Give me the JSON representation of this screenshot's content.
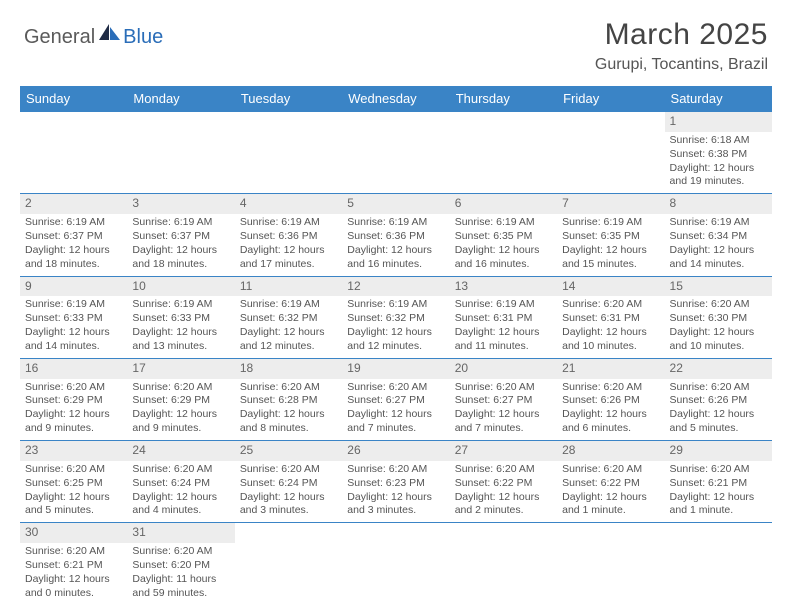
{
  "logo": {
    "general": "General",
    "blue": "Blue"
  },
  "title": "March 2025",
  "location": "Gurupi, Tocantins, Brazil",
  "colors": {
    "header_bg": "#3a84c6",
    "header_text": "#ffffff",
    "border": "#3a84c6",
    "daynum_bg": "#ededed",
    "text": "#555555",
    "logo_gray": "#5a5a5a",
    "logo_blue": "#2a6db8"
  },
  "weekdays": [
    "Sunday",
    "Monday",
    "Tuesday",
    "Wednesday",
    "Thursday",
    "Friday",
    "Saturday"
  ],
  "weeks": [
    [
      null,
      null,
      null,
      null,
      null,
      null,
      {
        "n": "1",
        "sr": "Sunrise: 6:18 AM",
        "ss": "Sunset: 6:38 PM",
        "d1": "Daylight: 12 hours",
        "d2": "and 19 minutes."
      }
    ],
    [
      {
        "n": "2",
        "sr": "Sunrise: 6:19 AM",
        "ss": "Sunset: 6:37 PM",
        "d1": "Daylight: 12 hours",
        "d2": "and 18 minutes."
      },
      {
        "n": "3",
        "sr": "Sunrise: 6:19 AM",
        "ss": "Sunset: 6:37 PM",
        "d1": "Daylight: 12 hours",
        "d2": "and 18 minutes."
      },
      {
        "n": "4",
        "sr": "Sunrise: 6:19 AM",
        "ss": "Sunset: 6:36 PM",
        "d1": "Daylight: 12 hours",
        "d2": "and 17 minutes."
      },
      {
        "n": "5",
        "sr": "Sunrise: 6:19 AM",
        "ss": "Sunset: 6:36 PM",
        "d1": "Daylight: 12 hours",
        "d2": "and 16 minutes."
      },
      {
        "n": "6",
        "sr": "Sunrise: 6:19 AM",
        "ss": "Sunset: 6:35 PM",
        "d1": "Daylight: 12 hours",
        "d2": "and 16 minutes."
      },
      {
        "n": "7",
        "sr": "Sunrise: 6:19 AM",
        "ss": "Sunset: 6:35 PM",
        "d1": "Daylight: 12 hours",
        "d2": "and 15 minutes."
      },
      {
        "n": "8",
        "sr": "Sunrise: 6:19 AM",
        "ss": "Sunset: 6:34 PM",
        "d1": "Daylight: 12 hours",
        "d2": "and 14 minutes."
      }
    ],
    [
      {
        "n": "9",
        "sr": "Sunrise: 6:19 AM",
        "ss": "Sunset: 6:33 PM",
        "d1": "Daylight: 12 hours",
        "d2": "and 14 minutes."
      },
      {
        "n": "10",
        "sr": "Sunrise: 6:19 AM",
        "ss": "Sunset: 6:33 PM",
        "d1": "Daylight: 12 hours",
        "d2": "and 13 minutes."
      },
      {
        "n": "11",
        "sr": "Sunrise: 6:19 AM",
        "ss": "Sunset: 6:32 PM",
        "d1": "Daylight: 12 hours",
        "d2": "and 12 minutes."
      },
      {
        "n": "12",
        "sr": "Sunrise: 6:19 AM",
        "ss": "Sunset: 6:32 PM",
        "d1": "Daylight: 12 hours",
        "d2": "and 12 minutes."
      },
      {
        "n": "13",
        "sr": "Sunrise: 6:19 AM",
        "ss": "Sunset: 6:31 PM",
        "d1": "Daylight: 12 hours",
        "d2": "and 11 minutes."
      },
      {
        "n": "14",
        "sr": "Sunrise: 6:20 AM",
        "ss": "Sunset: 6:31 PM",
        "d1": "Daylight: 12 hours",
        "d2": "and 10 minutes."
      },
      {
        "n": "15",
        "sr": "Sunrise: 6:20 AM",
        "ss": "Sunset: 6:30 PM",
        "d1": "Daylight: 12 hours",
        "d2": "and 10 minutes."
      }
    ],
    [
      {
        "n": "16",
        "sr": "Sunrise: 6:20 AM",
        "ss": "Sunset: 6:29 PM",
        "d1": "Daylight: 12 hours",
        "d2": "and 9 minutes."
      },
      {
        "n": "17",
        "sr": "Sunrise: 6:20 AM",
        "ss": "Sunset: 6:29 PM",
        "d1": "Daylight: 12 hours",
        "d2": "and 9 minutes."
      },
      {
        "n": "18",
        "sr": "Sunrise: 6:20 AM",
        "ss": "Sunset: 6:28 PM",
        "d1": "Daylight: 12 hours",
        "d2": "and 8 minutes."
      },
      {
        "n": "19",
        "sr": "Sunrise: 6:20 AM",
        "ss": "Sunset: 6:27 PM",
        "d1": "Daylight: 12 hours",
        "d2": "and 7 minutes."
      },
      {
        "n": "20",
        "sr": "Sunrise: 6:20 AM",
        "ss": "Sunset: 6:27 PM",
        "d1": "Daylight: 12 hours",
        "d2": "and 7 minutes."
      },
      {
        "n": "21",
        "sr": "Sunrise: 6:20 AM",
        "ss": "Sunset: 6:26 PM",
        "d1": "Daylight: 12 hours",
        "d2": "and 6 minutes."
      },
      {
        "n": "22",
        "sr": "Sunrise: 6:20 AM",
        "ss": "Sunset: 6:26 PM",
        "d1": "Daylight: 12 hours",
        "d2": "and 5 minutes."
      }
    ],
    [
      {
        "n": "23",
        "sr": "Sunrise: 6:20 AM",
        "ss": "Sunset: 6:25 PM",
        "d1": "Daylight: 12 hours",
        "d2": "and 5 minutes."
      },
      {
        "n": "24",
        "sr": "Sunrise: 6:20 AM",
        "ss": "Sunset: 6:24 PM",
        "d1": "Daylight: 12 hours",
        "d2": "and 4 minutes."
      },
      {
        "n": "25",
        "sr": "Sunrise: 6:20 AM",
        "ss": "Sunset: 6:24 PM",
        "d1": "Daylight: 12 hours",
        "d2": "and 3 minutes."
      },
      {
        "n": "26",
        "sr": "Sunrise: 6:20 AM",
        "ss": "Sunset: 6:23 PM",
        "d1": "Daylight: 12 hours",
        "d2": "and 3 minutes."
      },
      {
        "n": "27",
        "sr": "Sunrise: 6:20 AM",
        "ss": "Sunset: 6:22 PM",
        "d1": "Daylight: 12 hours",
        "d2": "and 2 minutes."
      },
      {
        "n": "28",
        "sr": "Sunrise: 6:20 AM",
        "ss": "Sunset: 6:22 PM",
        "d1": "Daylight: 12 hours",
        "d2": "and 1 minute."
      },
      {
        "n": "29",
        "sr": "Sunrise: 6:20 AM",
        "ss": "Sunset: 6:21 PM",
        "d1": "Daylight: 12 hours",
        "d2": "and 1 minute."
      }
    ],
    [
      {
        "n": "30",
        "sr": "Sunrise: 6:20 AM",
        "ss": "Sunset: 6:21 PM",
        "d1": "Daylight: 12 hours",
        "d2": "and 0 minutes."
      },
      {
        "n": "31",
        "sr": "Sunrise: 6:20 AM",
        "ss": "Sunset: 6:20 PM",
        "d1": "Daylight: 11 hours",
        "d2": "and 59 minutes."
      },
      null,
      null,
      null,
      null,
      null
    ]
  ]
}
